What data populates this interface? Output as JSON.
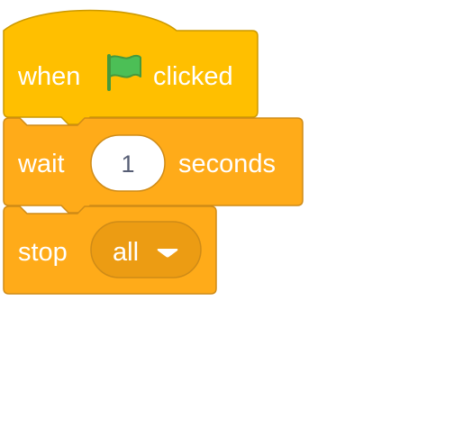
{
  "script": {
    "hat_block": {
      "label_before": "when",
      "icon": "green-flag-icon",
      "label_after": "clicked",
      "fill": "#FFBF00",
      "stroke": "#CC9900"
    },
    "wait_block": {
      "label_before": "wait",
      "duration_value": "1",
      "label_after": "seconds",
      "fill": "#FFAB19",
      "stroke": "#CF8B17"
    },
    "stop_block": {
      "label": "stop",
      "option_selected": "all",
      "dropdown_icon": "triangle-down-icon",
      "fill": "#FFAB19",
      "stroke": "#CF8B17",
      "dropdown_fill": "#EC9C13"
    },
    "flag_color": "#4CBF56"
  }
}
